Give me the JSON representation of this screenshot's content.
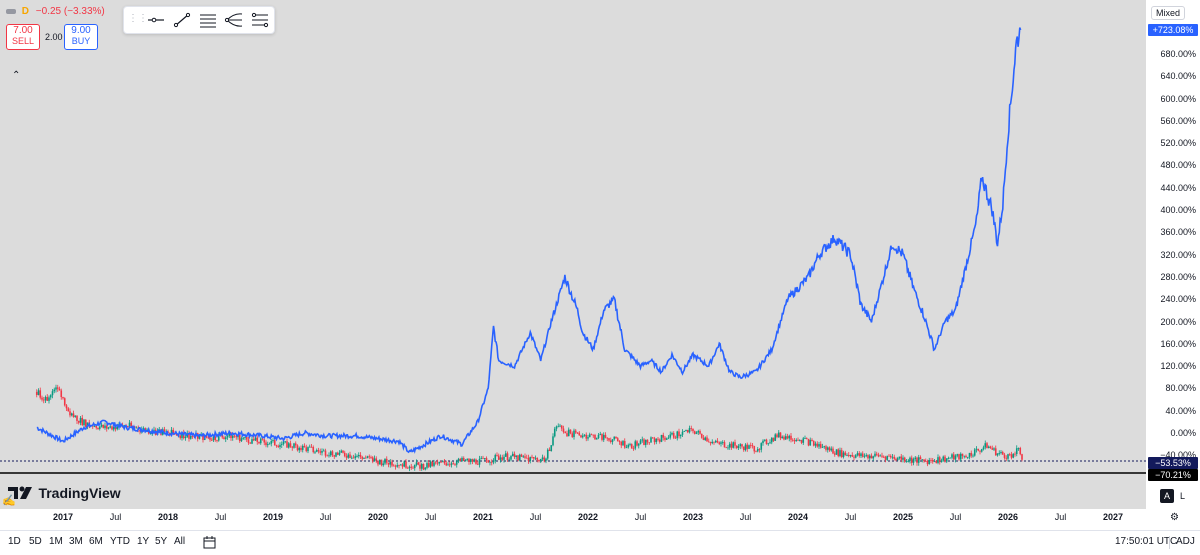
{
  "legend": {
    "symbol_letter": "D",
    "change": "−0.25 (−3.33%)",
    "sell_price": "7.00",
    "sell_label": "SELL",
    "spread": "2.00",
    "buy_price": "9.00",
    "buy_label": "BUY"
  },
  "toolbar": {
    "tools": [
      "horizontal-ray-icon",
      "trend-line-icon",
      "parallel-channel-icon",
      "pitchfork-icon",
      "fib-retracement-icon"
    ]
  },
  "price_scale": {
    "mode": "Mixed",
    "ticks": [
      "680.00%",
      "640.00%",
      "600.00%",
      "560.00%",
      "520.00%",
      "480.00%",
      "440.00%",
      "400.00%",
      "360.00%",
      "320.00%",
      "280.00%",
      "240.00%",
      "200.00%",
      "160.00%",
      "120.00%",
      "80.00%",
      "40.00%",
      "0.00%",
      "−40.00%"
    ],
    "current_blue": "+723.08%",
    "current_navy": "−53.53%",
    "current_black": "−70.21%"
  },
  "time_axis": {
    "labels": [
      {
        "text": "2017",
        "year": true
      },
      {
        "text": "Jul",
        "year": false
      },
      {
        "text": "2018",
        "year": true
      },
      {
        "text": "Jul",
        "year": false
      },
      {
        "text": "2019",
        "year": true
      },
      {
        "text": "Jul",
        "year": false
      },
      {
        "text": "2020",
        "year": true
      },
      {
        "text": "Jul",
        "year": false
      },
      {
        "text": "2021",
        "year": true
      },
      {
        "text": "Jul",
        "year": false
      },
      {
        "text": "2022",
        "year": true
      },
      {
        "text": "Jul",
        "year": false
      },
      {
        "text": "2023",
        "year": true
      },
      {
        "text": "Jul",
        "year": false
      },
      {
        "text": "2024",
        "year": true
      },
      {
        "text": "Jul",
        "year": false
      },
      {
        "text": "2025",
        "year": true
      },
      {
        "text": "Jul",
        "year": false
      },
      {
        "text": "2026",
        "year": true
      },
      {
        "text": "Jul",
        "year": false
      },
      {
        "text": "2027",
        "year": true
      }
    ]
  },
  "bottom_bar": {
    "ranges": [
      "1D",
      "5D",
      "1M",
      "3M",
      "6M",
      "YTD",
      "1Y",
      "5Y",
      "All"
    ],
    "clock": "17:50:01 UTC",
    "adj": "ADJ"
  },
  "scale_buttons": {
    "auto": "A",
    "log": "L"
  },
  "branding": {
    "name": "TradingView"
  },
  "colors": {
    "blue": "#2962ff",
    "green": "#089981",
    "red": "#f23645",
    "navy": "#131a5c",
    "bg": "#dcdcdc"
  },
  "chart_data": {
    "type": "line",
    "x_range": [
      "2016-09",
      "2026-03"
    ],
    "ylim": [
      -70,
      720
    ],
    "y_unit": "%",
    "series": [
      {
        "style": "line",
        "color": "#2962ff",
        "points": [
          [
            2016.75,
            10
          ],
          [
            2016.85,
            0
          ],
          [
            2017.0,
            -15
          ],
          [
            2017.2,
            10
          ],
          [
            2017.4,
            20
          ],
          [
            2017.6,
            10
          ],
          [
            2017.8,
            5
          ],
          [
            2018.0,
            0
          ],
          [
            2018.3,
            -5
          ],
          [
            2018.6,
            0
          ],
          [
            2018.9,
            -5
          ],
          [
            2019.1,
            -10
          ],
          [
            2019.3,
            0
          ],
          [
            2019.5,
            -5
          ],
          [
            2019.8,
            -5
          ],
          [
            2020.0,
            -10
          ],
          [
            2020.2,
            -15
          ],
          [
            2020.3,
            -35
          ],
          [
            2020.45,
            -20
          ],
          [
            2020.6,
            -5
          ],
          [
            2020.8,
            -20
          ],
          [
            2020.95,
            20
          ],
          [
            2021.05,
            80
          ],
          [
            2021.1,
            190
          ],
          [
            2021.15,
            130
          ],
          [
            2021.3,
            120
          ],
          [
            2021.45,
            180
          ],
          [
            2021.55,
            130
          ],
          [
            2021.65,
            200
          ],
          [
            2021.78,
            280
          ],
          [
            2021.9,
            220
          ],
          [
            2021.95,
            180
          ],
          [
            2022.05,
            150
          ],
          [
            2022.15,
            220
          ],
          [
            2022.25,
            240
          ],
          [
            2022.35,
            150
          ],
          [
            2022.5,
            120
          ],
          [
            2022.6,
            130
          ],
          [
            2022.7,
            110
          ],
          [
            2022.8,
            140
          ],
          [
            2022.9,
            110
          ],
          [
            2023.0,
            140
          ],
          [
            2023.15,
            120
          ],
          [
            2023.25,
            160
          ],
          [
            2023.35,
            110
          ],
          [
            2023.45,
            100
          ],
          [
            2023.6,
            110
          ],
          [
            2023.75,
            150
          ],
          [
            2023.9,
            240
          ],
          [
            2024.0,
            260
          ],
          [
            2024.1,
            280
          ],
          [
            2024.2,
            320
          ],
          [
            2024.35,
            350
          ],
          [
            2024.5,
            320
          ],
          [
            2024.6,
            230
          ],
          [
            2024.7,
            200
          ],
          [
            2024.8,
            270
          ],
          [
            2024.9,
            340
          ],
          [
            2025.0,
            320
          ],
          [
            2025.1,
            260
          ],
          [
            2025.2,
            210
          ],
          [
            2025.3,
            150
          ],
          [
            2025.4,
            200
          ],
          [
            2025.5,
            220
          ],
          [
            2025.6,
            300
          ],
          [
            2025.7,
            380
          ],
          [
            2025.75,
            460
          ],
          [
            2025.85,
            400
          ],
          [
            2025.9,
            340
          ],
          [
            2025.95,
            410
          ],
          [
            2026.0,
            540
          ],
          [
            2026.05,
            640
          ],
          [
            2026.08,
            700
          ],
          [
            2026.12,
            723
          ]
        ]
      },
      {
        "style": "candles",
        "up_color": "#089981",
        "down_color": "#f23645",
        "points": [
          [
            2016.75,
            80
          ],
          [
            2016.85,
            60
          ],
          [
            2016.95,
            90
          ],
          [
            2017.05,
            40
          ],
          [
            2017.2,
            20
          ],
          [
            2017.4,
            10
          ],
          [
            2017.6,
            15
          ],
          [
            2017.8,
            5
          ],
          [
            2018.0,
            0
          ],
          [
            2018.2,
            -5
          ],
          [
            2018.4,
            -10
          ],
          [
            2018.6,
            -5
          ],
          [
            2018.8,
            -15
          ],
          [
            2019.0,
            -20
          ],
          [
            2019.2,
            -25
          ],
          [
            2019.4,
            -35
          ],
          [
            2019.6,
            -40
          ],
          [
            2019.8,
            -45
          ],
          [
            2020.0,
            -55
          ],
          [
            2020.2,
            -60
          ],
          [
            2020.4,
            -65
          ],
          [
            2020.6,
            -60
          ],
          [
            2020.8,
            -55
          ],
          [
            2021.0,
            -55
          ],
          [
            2021.2,
            -45
          ],
          [
            2021.4,
            -50
          ],
          [
            2021.6,
            -50
          ],
          [
            2021.7,
            15
          ],
          [
            2021.8,
            0
          ],
          [
            2022.0,
            -5
          ],
          [
            2022.2,
            -10
          ],
          [
            2022.4,
            -25
          ],
          [
            2022.6,
            -15
          ],
          [
            2022.8,
            -5
          ],
          [
            2023.0,
            5
          ],
          [
            2023.2,
            -20
          ],
          [
            2023.4,
            -25
          ],
          [
            2023.6,
            -30
          ],
          [
            2023.8,
            -5
          ],
          [
            2024.0,
            -10
          ],
          [
            2024.2,
            -25
          ],
          [
            2024.4,
            -40
          ],
          [
            2024.6,
            -45
          ],
          [
            2024.8,
            -45
          ],
          [
            2025.0,
            -50
          ],
          [
            2025.2,
            -55
          ],
          [
            2025.4,
            -50
          ],
          [
            2025.6,
            -45
          ],
          [
            2025.8,
            -25
          ],
          [
            2025.9,
            -40
          ],
          [
            2026.0,
            -45
          ],
          [
            2026.1,
            -35
          ],
          [
            2026.15,
            -53.53
          ]
        ]
      }
    ]
  }
}
